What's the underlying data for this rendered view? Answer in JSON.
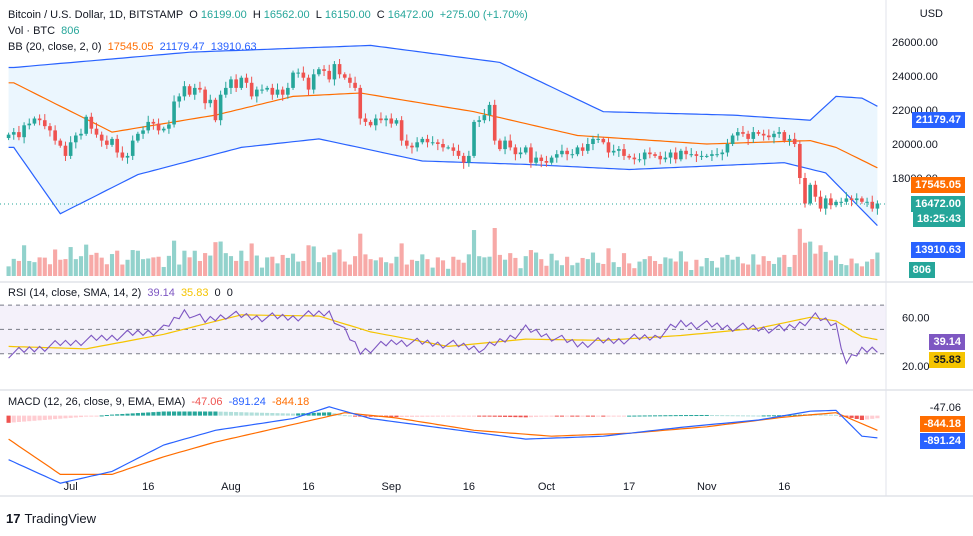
{
  "header": {
    "symbol": "Bitcoin / U.S. Dollar, 1D, BITSTAMP",
    "o_key": "O",
    "o_val": "16199.00",
    "h_key": "H",
    "h_val": "16562.00",
    "l_key": "L",
    "l_val": "16150.00",
    "c_key": "C",
    "c_val": "16472.00",
    "change": "+275.00 (+1.70%)",
    "vol_label": "Vol · BTC",
    "vol_val": "806",
    "bb_label": "BB (20, close, 2, 0)",
    "bb_mid": "17545.05",
    "bb_upper": "21179.47",
    "bb_lower": "13910.63",
    "rsi_label": "RSI (14, close, SMA, 14, 2)",
    "rsi_val": "39.14",
    "rsi_sma": "35.83",
    "rsi_z1": "0",
    "rsi_z2": "0",
    "macd_label": "MACD (12, 26, close, 9, EMA, EMA)",
    "macd_hist": "-47.06",
    "macd_line": "-891.24",
    "macd_signal": "-844.18"
  },
  "currency": "USD",
  "brand": {
    "logo": "17",
    "name": "TradingView"
  },
  "price_tags": {
    "bb_upper": "21179.47",
    "bb_mid": "17545.05",
    "last": "16472.00",
    "countdown": "18:25:43",
    "bb_lower": "13910.63",
    "volume": "806",
    "rsi": "39.14",
    "rsi_sma": "35.83",
    "macd_hist": "-47.06",
    "macd_signal": "-844.18",
    "macd_line": "-891.24"
  },
  "colors": {
    "up": "#26a69a",
    "down": "#ef5350",
    "bb_mid": "#ff6d00",
    "bb_band": "#2962ff",
    "bb_fill": "#e3f2fd",
    "rsi": "#7e57c2",
    "rsi_sma": "#f5c400",
    "macd": "#2962ff",
    "signal": "#ff6d00"
  },
  "chart_data": {
    "type": "candlestick",
    "x_tick_labels": [
      "Jul",
      "16",
      "Aug",
      "16",
      "Sep",
      "16",
      "Oct",
      "17",
      "Nov",
      "16"
    ],
    "x_tick_dates": [
      "2022-07-01",
      "2022-07-16",
      "2022-08-01",
      "2022-08-16",
      "2022-09-01",
      "2022-09-16",
      "2022-10-01",
      "2022-10-17",
      "2022-11-01",
      "2022-11-16"
    ],
    "first_date": "2022-06-19",
    "price_axis": {
      "ticks": [
        26000,
        24000,
        22000,
        20000,
        18000
      ],
      "tick_labels": [
        "26000.00",
        "24000.00",
        "22000.00",
        "20000.00",
        "18000.00"
      ],
      "range": [
        12000,
        27000
      ]
    },
    "closes": [
      20550,
      20700,
      20400,
      21100,
      21200,
      21500,
      21400,
      21050,
      20800,
      20200,
      19900,
      19300,
      20100,
      20500,
      20600,
      21600,
      20900,
      20550,
      20200,
      19950,
      20300,
      19500,
      19200,
      19300,
      20200,
      20600,
      20800,
      21300,
      21200,
      20800,
      20900,
      21150,
      22500,
      22800,
      23400,
      22900,
      23300,
      23200,
      22400,
      22600,
      21400,
      22900,
      23300,
      23800,
      23300,
      23900,
      23600,
      22800,
      23200,
      23200,
      23300,
      22900,
      23200,
      22900,
      23300,
      24200,
      24200,
      23900,
      23200,
      24100,
      24400,
      24300,
      23800,
      24700,
      24100,
      23900,
      23600,
      23300,
      21500,
      21300,
      21100,
      21500,
      21400,
      21500,
      21200,
      21400,
      20200,
      19900,
      19800,
      20100,
      20300,
      20100,
      20100,
      20000,
      19800,
      19800,
      19600,
      19300,
      18900,
      19300,
      21300,
      21400,
      21700,
      22300,
      20200,
      19700,
      20200,
      19800,
      19400,
      19500,
      19800,
      18900,
      19200,
      19000,
      18900,
      19200,
      19400,
      19600,
      19400,
      19400,
      19800,
      19600,
      20000,
      20300,
      20300,
      20100,
      19500,
      19600,
      19700,
      19300,
      19200,
      19100,
      19100,
      19500,
      19400,
      19300,
      19100,
      19200,
      19500,
      19100,
      19600,
      19400,
      19400,
      19300,
      19300,
      19300,
      19400,
      19400,
      19500,
      20000,
      20500,
      20700,
      20600,
      20300,
      20700,
      20600,
      20500,
      20400,
      20600,
      20700,
      20200,
      20300,
      20000,
      18000,
      16500,
      17600,
      16900,
      16200,
      16800,
      16400,
      16600,
      16600,
      16800,
      16700,
      16800,
      16600,
      16600,
      16200,
      16500
    ],
    "bollinger": {
      "upper_samples": [
        [
          1,
          24500
        ],
        [
          35,
          25400
        ],
        [
          70,
          25800
        ],
        [
          95,
          24800
        ],
        [
          115,
          21900
        ],
        [
          140,
          21700
        ],
        [
          155,
          21400
        ],
        [
          160,
          22800
        ],
        [
          165,
          22700
        ],
        [
          175,
          21100
        ]
      ],
      "mid_samples": [
        [
          1,
          23600
        ],
        [
          20,
          20700
        ],
        [
          40,
          21700
        ],
        [
          55,
          22800
        ],
        [
          68,
          23000
        ],
        [
          90,
          21900
        ],
        [
          110,
          20500
        ],
        [
          135,
          20000
        ],
        [
          155,
          20200
        ],
        [
          160,
          19800
        ],
        [
          175,
          17545
        ]
      ],
      "lower_samples": [
        [
          1,
          19800
        ],
        [
          10,
          15900
        ],
        [
          25,
          18200
        ],
        [
          45,
          19800
        ],
        [
          60,
          20300
        ],
        [
          80,
          19000
        ],
        [
          100,
          18800
        ],
        [
          120,
          18500
        ],
        [
          150,
          18900
        ],
        [
          158,
          18300
        ],
        [
          168,
          15200
        ],
        [
          175,
          13910
        ]
      ]
    },
    "volume_axis": {
      "label": "Vol · BTC",
      "last": 806
    },
    "rsi": {
      "axis_ticks": [
        60,
        20
      ],
      "axis_tick_labels": [
        "60.00",
        "20.00"
      ],
      "upper_band": 70,
      "mid": 50,
      "lower_band": 30,
      "last": 39.14,
      "sma_last": 35.83,
      "samples": [
        [
          0,
          30
        ],
        [
          10,
          38
        ],
        [
          20,
          44
        ],
        [
          30,
          50
        ],
        [
          34,
          65
        ],
        [
          38,
          57
        ],
        [
          42,
          62
        ],
        [
          48,
          60
        ],
        [
          55,
          60
        ],
        [
          62,
          64
        ],
        [
          68,
          32
        ],
        [
          75,
          40
        ],
        [
          85,
          38
        ],
        [
          92,
          34
        ],
        [
          100,
          50
        ],
        [
          110,
          38
        ],
        [
          120,
          42
        ],
        [
          125,
          44
        ],
        [
          130,
          55
        ],
        [
          140,
          52
        ],
        [
          150,
          50
        ],
        [
          156,
          60
        ],
        [
          160,
          54
        ],
        [
          162,
          22
        ],
        [
          165,
          33
        ],
        [
          170,
          36
        ],
        [
          175,
          39
        ]
      ],
      "sma_samples": [
        [
          0,
          36
        ],
        [
          15,
          34
        ],
        [
          30,
          46
        ],
        [
          45,
          62
        ],
        [
          60,
          61
        ],
        [
          70,
          48
        ],
        [
          85,
          36
        ],
        [
          100,
          42
        ],
        [
          115,
          41
        ],
        [
          130,
          45
        ],
        [
          145,
          51
        ],
        [
          155,
          60
        ],
        [
          160,
          57
        ],
        [
          165,
          44
        ],
        [
          175,
          36
        ]
      ]
    },
    "macd": {
      "last_hist": -47.06,
      "last_macd": -891.24,
      "last_signal": -844.18,
      "range": [
        -2600,
        600
      ],
      "macd_samples": [
        [
          0,
          -1500
        ],
        [
          10,
          -2300
        ],
        [
          20,
          -1900
        ],
        [
          30,
          -1000
        ],
        [
          40,
          -500
        ],
        [
          55,
          -100
        ],
        [
          62,
          300
        ],
        [
          70,
          -100
        ],
        [
          85,
          -450
        ],
        [
          100,
          -800
        ],
        [
          115,
          -700
        ],
        [
          130,
          -400
        ],
        [
          145,
          -150
        ],
        [
          155,
          150
        ],
        [
          160,
          180
        ],
        [
          165,
          -700
        ],
        [
          175,
          -891
        ]
      ],
      "signal_samples": [
        [
          0,
          -800
        ],
        [
          10,
          -2000
        ],
        [
          20,
          -2000
        ],
        [
          30,
          -1400
        ],
        [
          40,
          -900
        ],
        [
          55,
          -300
        ],
        [
          65,
          100
        ],
        [
          75,
          -80
        ],
        [
          90,
          -500
        ],
        [
          105,
          -700
        ],
        [
          120,
          -600
        ],
        [
          135,
          -380
        ],
        [
          150,
          -50
        ],
        [
          160,
          100
        ],
        [
          168,
          -500
        ],
        [
          175,
          -844
        ]
      ]
    }
  }
}
